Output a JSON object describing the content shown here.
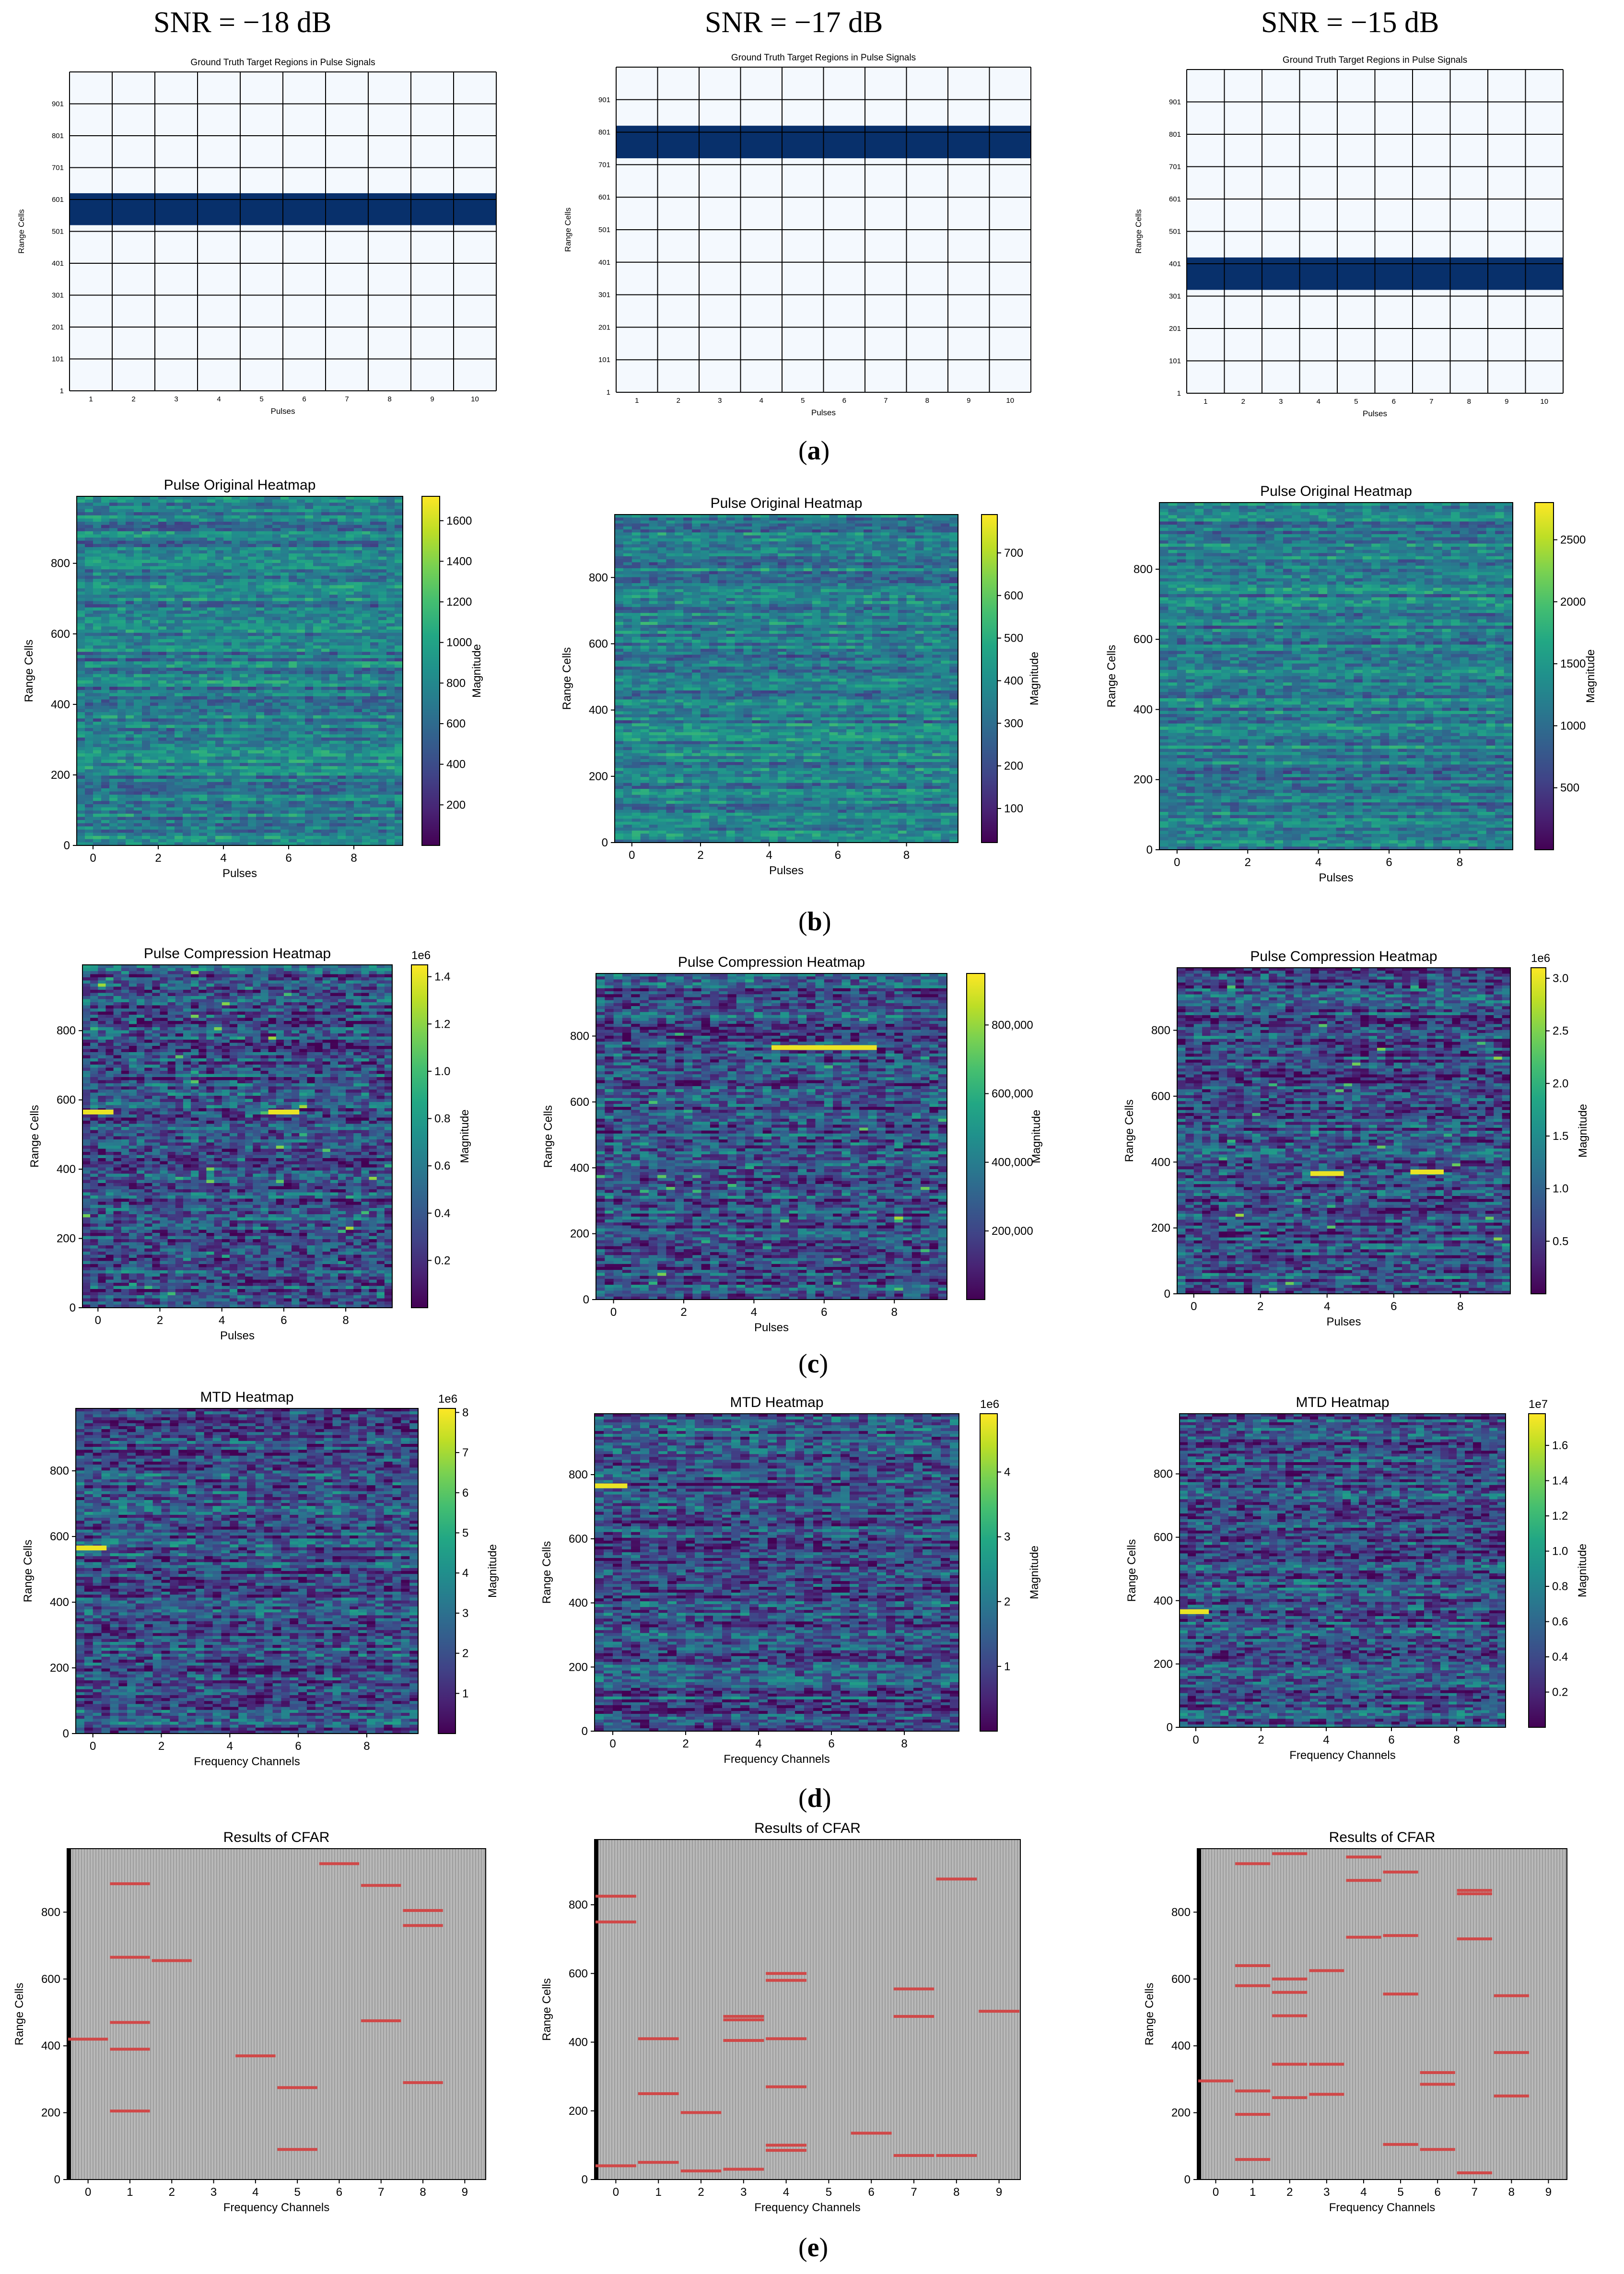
{
  "column_headers": [
    "SNR = −18 dB",
    "SNR = −17 dB",
    "SNR = −15 dB"
  ],
  "row_captions": {
    "a": {
      "open": "(",
      "letter": "a",
      "close": ")"
    },
    "b": {
      "open": "(",
      "letter": "b",
      "close": ")"
    },
    "c": {
      "open": "(",
      "letter": "c",
      "close": ")"
    },
    "d": {
      "open": "(",
      "letter": "d",
      "close": ")"
    },
    "e": {
      "open": "(",
      "letter": "e",
      "close": ")"
    }
  },
  "colors": {
    "target_band": "#08306b",
    "grid_background": "#f4f9fe",
    "cfar_hit": "#d04848",
    "cfar_background": "#b8b8b8",
    "colormap": "viridis"
  },
  "chart_data": [
    {
      "row": "a",
      "col": 0,
      "type": "table",
      "title": "Ground Truth Target Regions in Pulse Signals",
      "xlabel": "Pulses",
      "ylabel": "Range Cells",
      "x_ticks": [
        "1",
        "2",
        "3",
        "4",
        "5",
        "6",
        "7",
        "8",
        "9",
        "10"
      ],
      "y_ticks": [
        "1",
        "101",
        "201",
        "301",
        "401",
        "501",
        "601",
        "701",
        "801",
        "901"
      ],
      "target_region": [
        520,
        620
      ]
    },
    {
      "row": "a",
      "col": 1,
      "type": "table",
      "title": "Ground Truth Target Regions in Pulse Signals",
      "xlabel": "Pulses",
      "ylabel": "Range Cells",
      "x_ticks": [
        "1",
        "2",
        "3",
        "4",
        "5",
        "6",
        "7",
        "8",
        "9",
        "10"
      ],
      "y_ticks": [
        "1",
        "101",
        "201",
        "301",
        "401",
        "501",
        "601",
        "701",
        "801",
        "901"
      ],
      "target_region": [
        720,
        820
      ]
    },
    {
      "row": "a",
      "col": 2,
      "type": "table",
      "title": "Ground Truth Target Regions in Pulse Signals",
      "xlabel": "Pulses",
      "ylabel": "Range Cells",
      "x_ticks": [
        "1",
        "2",
        "3",
        "4",
        "5",
        "6",
        "7",
        "8",
        "9",
        "10"
      ],
      "y_ticks": [
        "1",
        "101",
        "201",
        "301",
        "401",
        "501",
        "601",
        "701",
        "801",
        "901"
      ],
      "target_region": [
        320,
        420
      ]
    },
    {
      "row": "b",
      "col": 0,
      "type": "heatmap",
      "title": "Pulse Original Heatmap",
      "xlabel": "Pulses",
      "ylabel": "Range Cells",
      "colorbar_label": "Magnitude",
      "x_ticks": [
        0,
        2,
        4,
        6,
        8
      ],
      "y_ticks": [
        0,
        200,
        400,
        600,
        800
      ],
      "clim": [
        0,
        1720
      ],
      "colorbar_ticks": [
        "200",
        "400",
        "600",
        "800",
        "1000",
        "1200",
        "1400",
        "1600"
      ],
      "colorbar_tick_values": [
        200,
        400,
        600,
        800,
        1000,
        1200,
        1400,
        1600
      ],
      "offset_text": "",
      "hotspots": []
    },
    {
      "row": "b",
      "col": 1,
      "type": "heatmap",
      "title": "Pulse Original Heatmap",
      "xlabel": "Pulses",
      "ylabel": "Range Cells",
      "colorbar_label": "Magnitude",
      "x_ticks": [
        0,
        2,
        4,
        6,
        8
      ],
      "y_ticks": [
        0,
        200,
        400,
        600,
        800
      ],
      "clim": [
        20,
        790
      ],
      "colorbar_ticks": [
        "100",
        "200",
        "300",
        "400",
        "500",
        "600",
        "700"
      ],
      "colorbar_tick_values": [
        100,
        200,
        300,
        400,
        500,
        600,
        700
      ],
      "offset_text": "",
      "hotspots": []
    },
    {
      "row": "b",
      "col": 2,
      "type": "heatmap",
      "title": "Pulse Original Heatmap",
      "xlabel": "Pulses",
      "ylabel": "Range Cells",
      "colorbar_label": "Magnitude",
      "x_ticks": [
        0,
        2,
        4,
        6,
        8
      ],
      "y_ticks": [
        0,
        200,
        400,
        600,
        800
      ],
      "clim": [
        0,
        2800
      ],
      "colorbar_ticks": [
        "500",
        "1000",
        "1500",
        "2000",
        "2500"
      ],
      "colorbar_tick_values": [
        500,
        1000,
        1500,
        2000,
        2500
      ],
      "offset_text": "",
      "hotspots": []
    },
    {
      "row": "c",
      "col": 0,
      "type": "heatmap",
      "title": "Pulse Compression Heatmap",
      "xlabel": "Pulses",
      "ylabel": "Range Cells",
      "colorbar_label": "Magnitude",
      "x_ticks": [
        0,
        2,
        4,
        6,
        8
      ],
      "y_ticks": [
        0,
        200,
        400,
        600,
        800
      ],
      "clim": [
        0,
        1.45
      ],
      "colorbar_ticks": [
        "0.2",
        "0.4",
        "0.6",
        "0.8",
        "1.0",
        "1.2",
        "1.4"
      ],
      "colorbar_tick_values": [
        0.2,
        0.4,
        0.6,
        0.8,
        1.0,
        1.2,
        1.4
      ],
      "offset_text": "1e6",
      "hotspots": [
        [
          565,
          -0.5,
          0.5
        ],
        [
          565,
          5.5,
          6.5
        ]
      ]
    },
    {
      "row": "c",
      "col": 1,
      "type": "heatmap",
      "title": "Pulse Compression Heatmap",
      "xlabel": "Pulses",
      "ylabel": "Range Cells",
      "colorbar_label": "Magnitude",
      "x_ticks": [
        0,
        2,
        4,
        6,
        8
      ],
      "y_ticks": [
        0,
        200,
        400,
        600,
        800
      ],
      "clim": [
        0,
        950000
      ],
      "colorbar_ticks": [
        "200,000",
        "400,000",
        "600,000",
        "800,000"
      ],
      "colorbar_tick_values": [
        200000,
        400000,
        600000,
        800000
      ],
      "offset_text": "",
      "hotspots": [
        [
          765,
          4.5,
          7.5
        ]
      ]
    },
    {
      "row": "c",
      "col": 2,
      "type": "heatmap",
      "title": "Pulse Compression Heatmap",
      "xlabel": "Pulses",
      "ylabel": "Range Cells",
      "colorbar_label": "Magnitude",
      "x_ticks": [
        0,
        2,
        4,
        6,
        8
      ],
      "y_ticks": [
        0,
        200,
        400,
        600,
        800
      ],
      "clim": [
        0,
        3.1
      ],
      "colorbar_ticks": [
        "0.5",
        "1.0",
        "1.5",
        "2.0",
        "2.5",
        "3.0"
      ],
      "colorbar_tick_values": [
        0.5,
        1.0,
        1.5,
        2.0,
        2.5,
        3.0
      ],
      "offset_text": "1e6",
      "hotspots": [
        [
          365,
          3.5,
          4.5
        ],
        [
          370,
          6.5,
          7.5
        ]
      ]
    },
    {
      "row": "d",
      "col": 0,
      "type": "heatmap",
      "title": "MTD Heatmap",
      "xlabel": "Frequency Channels",
      "ylabel": "Range Cells",
      "colorbar_label": "Magnitude",
      "x_ticks": [
        0,
        2,
        4,
        6,
        8
      ],
      "y_ticks": [
        0,
        200,
        400,
        600,
        800
      ],
      "clim": [
        0,
        8.1
      ],
      "colorbar_ticks": [
        "1",
        "2",
        "3",
        "4",
        "5",
        "6",
        "7",
        "8"
      ],
      "colorbar_tick_values": [
        1,
        2,
        3,
        4,
        5,
        6,
        7,
        8
      ],
      "offset_text": "1e6",
      "hotspots": [
        [
          565,
          -0.5,
          0.4
        ]
      ]
    },
    {
      "row": "d",
      "col": 1,
      "type": "heatmap",
      "title": "MTD Heatmap",
      "xlabel": "Frequency Channels",
      "ylabel": "Range Cells",
      "colorbar_label": "Magnitude",
      "x_ticks": [
        0,
        2,
        4,
        6,
        8
      ],
      "y_ticks": [
        0,
        200,
        400,
        600,
        800
      ],
      "clim": [
        0,
        4.9
      ],
      "colorbar_ticks": [
        "1",
        "2",
        "3",
        "4"
      ],
      "colorbar_tick_values": [
        1,
        2,
        3,
        4
      ],
      "offset_text": "1e6",
      "hotspots": [
        [
          765,
          -0.5,
          0.4
        ]
      ]
    },
    {
      "row": "d",
      "col": 2,
      "type": "heatmap",
      "title": "MTD Heatmap",
      "xlabel": "Frequency Channels",
      "ylabel": "Range Cells",
      "colorbar_label": "Magnitude",
      "x_ticks": [
        0,
        2,
        4,
        6,
        8
      ],
      "y_ticks": [
        0,
        200,
        400,
        600,
        800
      ],
      "clim": [
        0,
        1.78
      ],
      "colorbar_ticks": [
        "0.2",
        "0.4",
        "0.6",
        "0.8",
        "1.0",
        "1.2",
        "1.4",
        "1.6"
      ],
      "colorbar_tick_values": [
        0.2,
        0.4,
        0.6,
        0.8,
        1.0,
        1.2,
        1.4,
        1.6
      ],
      "offset_text": "1e7",
      "hotspots": [
        [
          365,
          -0.5,
          0.4
        ]
      ]
    },
    {
      "row": "e",
      "col": 0,
      "type": "scatter",
      "title": "Results of CFAR",
      "xlabel": "Frequency Channels",
      "ylabel": "Range Cells",
      "x_ticks": [
        0,
        1,
        2,
        3,
        4,
        5,
        6,
        7,
        8,
        9
      ],
      "y_ticks": [
        0,
        200,
        400,
        600,
        800
      ],
      "xlim": [
        -0.5,
        9.5
      ],
      "ylim": [
        0,
        990
      ],
      "detections": [
        [
          0,
          420
        ],
        [
          1,
          885
        ],
        [
          1,
          665
        ],
        [
          1,
          470
        ],
        [
          1,
          390
        ],
        [
          1,
          205
        ],
        [
          2,
          655
        ],
        [
          4,
          370
        ],
        [
          5,
          275
        ],
        [
          5,
          90
        ],
        [
          6,
          945
        ],
        [
          7,
          880
        ],
        [
          7,
          475
        ],
        [
          8,
          805
        ],
        [
          8,
          760
        ],
        [
          8,
          290
        ]
      ]
    },
    {
      "row": "e",
      "col": 1,
      "type": "scatter",
      "title": "Results of CFAR",
      "xlabel": "Frequency Channels",
      "ylabel": "Range Cells",
      "x_ticks": [
        0,
        1,
        2,
        3,
        4,
        5,
        6,
        7,
        8,
        9
      ],
      "y_ticks": [
        0,
        200,
        400,
        600,
        800
      ],
      "xlim": [
        -0.5,
        9.5
      ],
      "ylim": [
        0,
        990
      ],
      "detections": [
        [
          0,
          825
        ],
        [
          0,
          750
        ],
        [
          0,
          40
        ],
        [
          1,
          410
        ],
        [
          1,
          250
        ],
        [
          1,
          50
        ],
        [
          2,
          195
        ],
        [
          2,
          25
        ],
        [
          3,
          475
        ],
        [
          3,
          465
        ],
        [
          3,
          405
        ],
        [
          3,
          30
        ],
        [
          4,
          600
        ],
        [
          4,
          580
        ],
        [
          4,
          410
        ],
        [
          4,
          270
        ],
        [
          4,
          100
        ],
        [
          4,
          85
        ],
        [
          6,
          135
        ],
        [
          7,
          555
        ],
        [
          7,
          475
        ],
        [
          7,
          70
        ],
        [
          8,
          875
        ],
        [
          8,
          70
        ],
        [
          9,
          490
        ]
      ]
    },
    {
      "row": "e",
      "col": 2,
      "type": "scatter",
      "title": "Results of CFAR",
      "xlabel": "Frequency Channels",
      "ylabel": "Range Cells",
      "x_ticks": [
        0,
        1,
        2,
        3,
        4,
        5,
        6,
        7,
        8,
        9
      ],
      "y_ticks": [
        0,
        200,
        400,
        600,
        800
      ],
      "xlim": [
        -0.5,
        9.5
      ],
      "ylim": [
        0,
        990
      ],
      "detections": [
        [
          0,
          295
        ],
        [
          1,
          945
        ],
        [
          1,
          640
        ],
        [
          1,
          580
        ],
        [
          1,
          265
        ],
        [
          1,
          195
        ],
        [
          1,
          60
        ],
        [
          2,
          975
        ],
        [
          2,
          600
        ],
        [
          2,
          560
        ],
        [
          2,
          490
        ],
        [
          2,
          345
        ],
        [
          2,
          245
        ],
        [
          3,
          625
        ],
        [
          3,
          345
        ],
        [
          3,
          255
        ],
        [
          4,
          965
        ],
        [
          4,
          895
        ],
        [
          4,
          725
        ],
        [
          5,
          920
        ],
        [
          5,
          730
        ],
        [
          5,
          555
        ],
        [
          5,
          105
        ],
        [
          6,
          320
        ],
        [
          6,
          285
        ],
        [
          6,
          90
        ],
        [
          7,
          865
        ],
        [
          7,
          855
        ],
        [
          7,
          720
        ],
        [
          7,
          20
        ],
        [
          8,
          550
        ],
        [
          8,
          380
        ],
        [
          8,
          250
        ]
      ]
    }
  ]
}
